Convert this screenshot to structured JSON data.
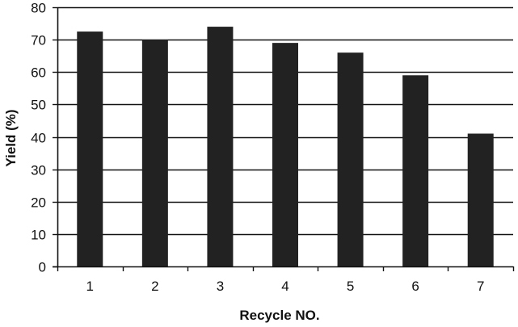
{
  "chart_data": {
    "type": "bar",
    "categories": [
      "1",
      "2",
      "3",
      "4",
      "5",
      "6",
      "7"
    ],
    "values": [
      72.5,
      70,
      74,
      69,
      66,
      59,
      41
    ],
    "title": "",
    "xlabel": "Recycle NO.",
    "ylabel": "Yield (%)",
    "ylim": [
      0,
      80
    ],
    "yticks": [
      0,
      10,
      20,
      30,
      40,
      50,
      60,
      70,
      80
    ],
    "grid": "horizontal",
    "legend": "none",
    "colors": {
      "bar": "#222222",
      "grid": "#111111",
      "axis": "#111111",
      "text": "#111111",
      "background": "#ffffff"
    }
  }
}
